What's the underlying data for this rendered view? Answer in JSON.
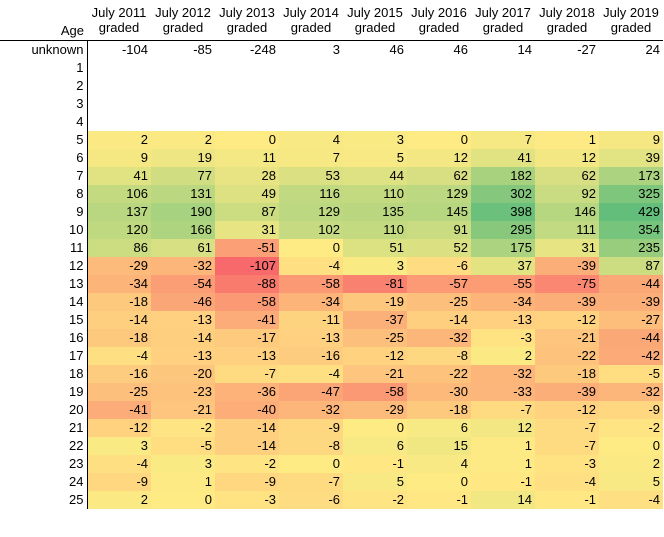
{
  "table": {
    "age_header": "Age",
    "columns": [
      [
        "July 2011",
        "graded"
      ],
      [
        "July 2012",
        "graded"
      ],
      [
        "July 2013",
        "graded"
      ],
      [
        "July 2014",
        "graded"
      ],
      [
        "July 2015",
        "graded"
      ],
      [
        "July 2016",
        "graded"
      ],
      [
        "July 2017",
        "graded"
      ],
      [
        "July 2018",
        "graded"
      ],
      [
        "July 2019",
        "graded"
      ]
    ],
    "rows": [
      {
        "age": "unknown",
        "values": [
          "-104",
          "-85",
          "-248",
          "3",
          "46",
          "46",
          "14",
          "-27",
          "24"
        ],
        "colored": false
      },
      {
        "age": "1",
        "values": [
          "",
          "",
          "",
          "",
          "",
          "",
          "",
          "",
          ""
        ],
        "colored": false
      },
      {
        "age": "2",
        "values": [
          "",
          "",
          "",
          "",
          "",
          "",
          "",
          "",
          ""
        ],
        "colored": false
      },
      {
        "age": "3",
        "values": [
          "",
          "",
          "",
          "",
          "",
          "",
          "",
          "",
          ""
        ],
        "colored": false
      },
      {
        "age": "4",
        "values": [
          "",
          "",
          "",
          "",
          "",
          "",
          "",
          "",
          ""
        ],
        "colored": false
      },
      {
        "age": "5",
        "values": [
          "2",
          "2",
          "0",
          "4",
          "3",
          "0",
          "7",
          "1",
          "9"
        ],
        "colored": true
      },
      {
        "age": "6",
        "values": [
          "9",
          "19",
          "11",
          "7",
          "5",
          "12",
          "41",
          "12",
          "39"
        ],
        "colored": true
      },
      {
        "age": "7",
        "values": [
          "41",
          "77",
          "28",
          "53",
          "44",
          "62",
          "182",
          "62",
          "173"
        ],
        "colored": true
      },
      {
        "age": "8",
        "values": [
          "106",
          "131",
          "49",
          "116",
          "110",
          "129",
          "302",
          "92",
          "325"
        ],
        "colored": true
      },
      {
        "age": "9",
        "values": [
          "137",
          "190",
          "87",
          "129",
          "135",
          "145",
          "398",
          "146",
          "429"
        ],
        "colored": true
      },
      {
        "age": "10",
        "values": [
          "120",
          "166",
          "31",
          "102",
          "110",
          "91",
          "295",
          "111",
          "354"
        ],
        "colored": true
      },
      {
        "age": "11",
        "values": [
          "86",
          "61",
          "-51",
          "0",
          "51",
          "52",
          "175",
          "31",
          "235"
        ],
        "colored": true
      },
      {
        "age": "12",
        "values": [
          "-29",
          "-32",
          "-107",
          "-4",
          "3",
          "-6",
          "37",
          "-39",
          "87"
        ],
        "colored": true
      },
      {
        "age": "13",
        "values": [
          "-34",
          "-54",
          "-88",
          "-58",
          "-81",
          "-57",
          "-55",
          "-75",
          "-44"
        ],
        "colored": true
      },
      {
        "age": "14",
        "values": [
          "-18",
          "-46",
          "-58",
          "-34",
          "-19",
          "-25",
          "-34",
          "-39",
          "-39"
        ],
        "colored": true
      },
      {
        "age": "15",
        "values": [
          "-14",
          "-13",
          "-41",
          "-11",
          "-37",
          "-14",
          "-13",
          "-12",
          "-27"
        ],
        "colored": true
      },
      {
        "age": "16",
        "values": [
          "-18",
          "-14",
          "-17",
          "-13",
          "-25",
          "-32",
          "-3",
          "-21",
          "-44"
        ],
        "colored": true
      },
      {
        "age": "17",
        "values": [
          "-4",
          "-13",
          "-13",
          "-16",
          "-12",
          "-8",
          "2",
          "-22",
          "-42"
        ],
        "colored": true
      },
      {
        "age": "18",
        "values": [
          "-16",
          "-20",
          "-7",
          "-4",
          "-21",
          "-22",
          "-32",
          "-18",
          "-5"
        ],
        "colored": true
      },
      {
        "age": "19",
        "values": [
          "-25",
          "-23",
          "-36",
          "-47",
          "-58",
          "-30",
          "-33",
          "-39",
          "-32"
        ],
        "colored": true
      },
      {
        "age": "20",
        "values": [
          "-41",
          "-21",
          "-40",
          "-32",
          "-29",
          "-18",
          "-7",
          "-12",
          "-9"
        ],
        "colored": true
      },
      {
        "age": "21",
        "values": [
          "-12",
          "-2",
          "-14",
          "-9",
          "0",
          "6",
          "12",
          "-7",
          "-2"
        ],
        "colored": true
      },
      {
        "age": "22",
        "values": [
          "3",
          "-5",
          "-14",
          "-8",
          "6",
          "15",
          "1",
          "-7",
          "0"
        ],
        "colored": true
      },
      {
        "age": "23",
        "values": [
          "-4",
          "3",
          "-2",
          "0",
          "-1",
          "4",
          "1",
          "-3",
          "2"
        ],
        "colored": true
      },
      {
        "age": "24",
        "values": [
          "-9",
          "1",
          "-9",
          "-7",
          "5",
          "0",
          "-1",
          "-4",
          "5"
        ],
        "colored": true
      },
      {
        "age": "25",
        "values": [
          "2",
          "0",
          "-3",
          "-6",
          "-2",
          "-1",
          "14",
          "-1",
          "-4"
        ],
        "colored": true
      }
    ],
    "color_scale": {
      "min_color": "#F8696B",
      "mid_color": "#FFEB84",
      "max_color": "#63BE7B"
    }
  }
}
